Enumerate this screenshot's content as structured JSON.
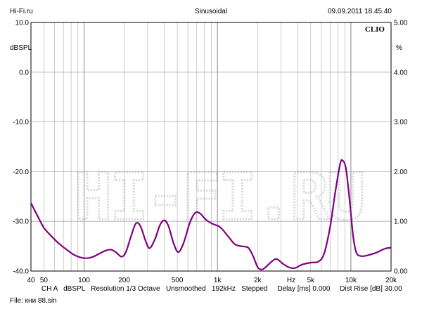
{
  "header": {
    "left": "Hi-Fi.ru",
    "center": "Sinusoidal",
    "right": "09.09.2011 18.45.40",
    "brand": "CLIO"
  },
  "footer": {
    "line1": "CH A   dBSPL   Resolution 1/3 Octave   Unsmoothed   192kHz   Stepped     Delay [ms] 0.000     Dist Rise [dB] 30.00",
    "line2": "File: кни 88.sin"
  },
  "watermark": {
    "text": "HI-FI.RU"
  },
  "colors": {
    "curve": "#800080",
    "grid": "#aaaaaa",
    "watermark": "#d8d8d8"
  },
  "chart_data": {
    "type": "line",
    "title": "Sinusoidal",
    "xlabel": "Hz",
    "ylabel": "dBSPL",
    "y2label": "%",
    "xscale": "log",
    "xlim": [
      40,
      20000
    ],
    "ylim": [
      -40,
      10
    ],
    "y2lim": [
      0,
      5
    ],
    "grid": true,
    "x_ticks": [
      {
        "value": 40,
        "label": "40"
      },
      {
        "value": 50,
        "label": "50"
      },
      {
        "value": 100,
        "label": "100"
      },
      {
        "value": 200,
        "label": "200"
      },
      {
        "value": 500,
        "label": "500"
      },
      {
        "value": 1000,
        "label": "1k"
      },
      {
        "value": 2000,
        "label": "2k"
      },
      {
        "value": 5000,
        "label": "5k"
      },
      {
        "value": 10000,
        "label": "10k"
      },
      {
        "value": 20000,
        "label": "20k"
      }
    ],
    "y_ticks": [
      {
        "value": 10,
        "label": "10.0"
      },
      {
        "value": 0,
        "label": "0.0"
      },
      {
        "value": -10,
        "label": "-10.0"
      },
      {
        "value": -20,
        "label": "-20.0"
      },
      {
        "value": -30,
        "label": "-30.0"
      },
      {
        "value": -40,
        "label": "-40.0"
      }
    ],
    "y2_ticks": [
      {
        "value": 5,
        "label": "5.00"
      },
      {
        "value": 4,
        "label": "4.00"
      },
      {
        "value": 3,
        "label": "3.00"
      },
      {
        "value": 2,
        "label": "2.00"
      },
      {
        "value": 1,
        "label": "1.00"
      },
      {
        "value": 0,
        "label": "0.00"
      }
    ],
    "series": [
      {
        "points": [
          [
            40,
            -26.3
          ],
          [
            45,
            -29.0
          ],
          [
            50,
            -31.3
          ],
          [
            57,
            -33.0
          ],
          [
            65,
            -34.5
          ],
          [
            75,
            -35.8
          ],
          [
            85,
            -36.8
          ],
          [
            100,
            -37.4
          ],
          [
            115,
            -37.2
          ],
          [
            130,
            -36.5
          ],
          [
            145,
            -35.9
          ],
          [
            160,
            -35.7
          ],
          [
            175,
            -36.3
          ],
          [
            190,
            -37.1
          ],
          [
            205,
            -36.3
          ],
          [
            225,
            -33.0
          ],
          [
            245,
            -30.4
          ],
          [
            265,
            -31.0
          ],
          [
            290,
            -34.0
          ],
          [
            310,
            -35.4
          ],
          [
            340,
            -33.6
          ],
          [
            370,
            -30.8
          ],
          [
            400,
            -29.8
          ],
          [
            430,
            -31.0
          ],
          [
            470,
            -34.5
          ],
          [
            510,
            -36.2
          ],
          [
            560,
            -34.2
          ],
          [
            620,
            -30.3
          ],
          [
            680,
            -28.3
          ],
          [
            740,
            -28.4
          ],
          [
            820,
            -29.7
          ],
          [
            920,
            -30.5
          ],
          [
            1050,
            -31.2
          ],
          [
            1200,
            -33.0
          ],
          [
            1350,
            -34.6
          ],
          [
            1500,
            -35.0
          ],
          [
            1700,
            -35.3
          ],
          [
            1850,
            -37.0
          ],
          [
            2000,
            -39.2
          ],
          [
            2150,
            -39.7
          ],
          [
            2300,
            -39.2
          ],
          [
            2600,
            -37.9
          ],
          [
            2800,
            -37.6
          ],
          [
            3050,
            -38.4
          ],
          [
            3400,
            -39.2
          ],
          [
            3800,
            -39.4
          ],
          [
            4300,
            -38.7
          ],
          [
            5000,
            -38.3
          ],
          [
            5700,
            -38.1
          ],
          [
            6300,
            -36.5
          ],
          [
            7000,
            -31.0
          ],
          [
            7600,
            -24.5
          ],
          [
            8300,
            -18.5
          ],
          [
            8700,
            -17.8
          ],
          [
            9200,
            -19.5
          ],
          [
            9800,
            -26.0
          ],
          [
            10400,
            -33.0
          ],
          [
            11000,
            -36.3
          ],
          [
            12000,
            -37.0
          ],
          [
            13500,
            -36.8
          ],
          [
            15500,
            -36.3
          ],
          [
            18000,
            -35.5
          ],
          [
            20000,
            -35.3
          ]
        ]
      }
    ]
  }
}
